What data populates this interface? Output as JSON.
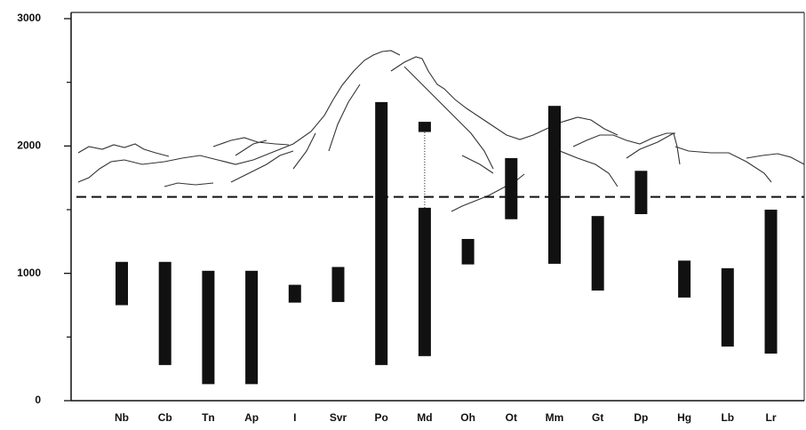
{
  "chart_data": {
    "type": "range-bar",
    "categories": [
      "Nb",
      "Cb",
      "Tn",
      "Ap",
      "I",
      "Svr",
      "Po",
      "Md",
      "Oh",
      "Ot",
      "Mm",
      "Gt",
      "Dp",
      "Hg",
      "Lb",
      "Lr"
    ],
    "ranges": [
      {
        "low": [
          750,
          280,
          130,
          130,
          770,
          775,
          280,
          350,
          1070,
          1425,
          1075,
          865,
          1465,
          810,
          425,
          370
        ],
        "high": [
          1090,
          1090,
          1020,
          1020,
          910,
          1050,
          2345,
          1515,
          1270,
          1905,
          2315,
          1450,
          1805,
          1100,
          1040,
          1500
        ]
      },
      {
        "low": [
          null,
          null,
          null,
          null,
          null,
          null,
          null,
          2110,
          null,
          null,
          null,
          null,
          null,
          null,
          null,
          null
        ],
        "high": [
          null,
          null,
          null,
          null,
          null,
          null,
          null,
          2190,
          null,
          null,
          null,
          null,
          null,
          null,
          null,
          null
        ]
      }
    ],
    "color": "#111111",
    "reference_line": 1600,
    "ylim": [
      0,
      3000
    ],
    "yticks": [
      0,
      1000,
      2000,
      3000
    ],
    "minor_yticks": [
      500,
      1500,
      2500
    ]
  }
}
